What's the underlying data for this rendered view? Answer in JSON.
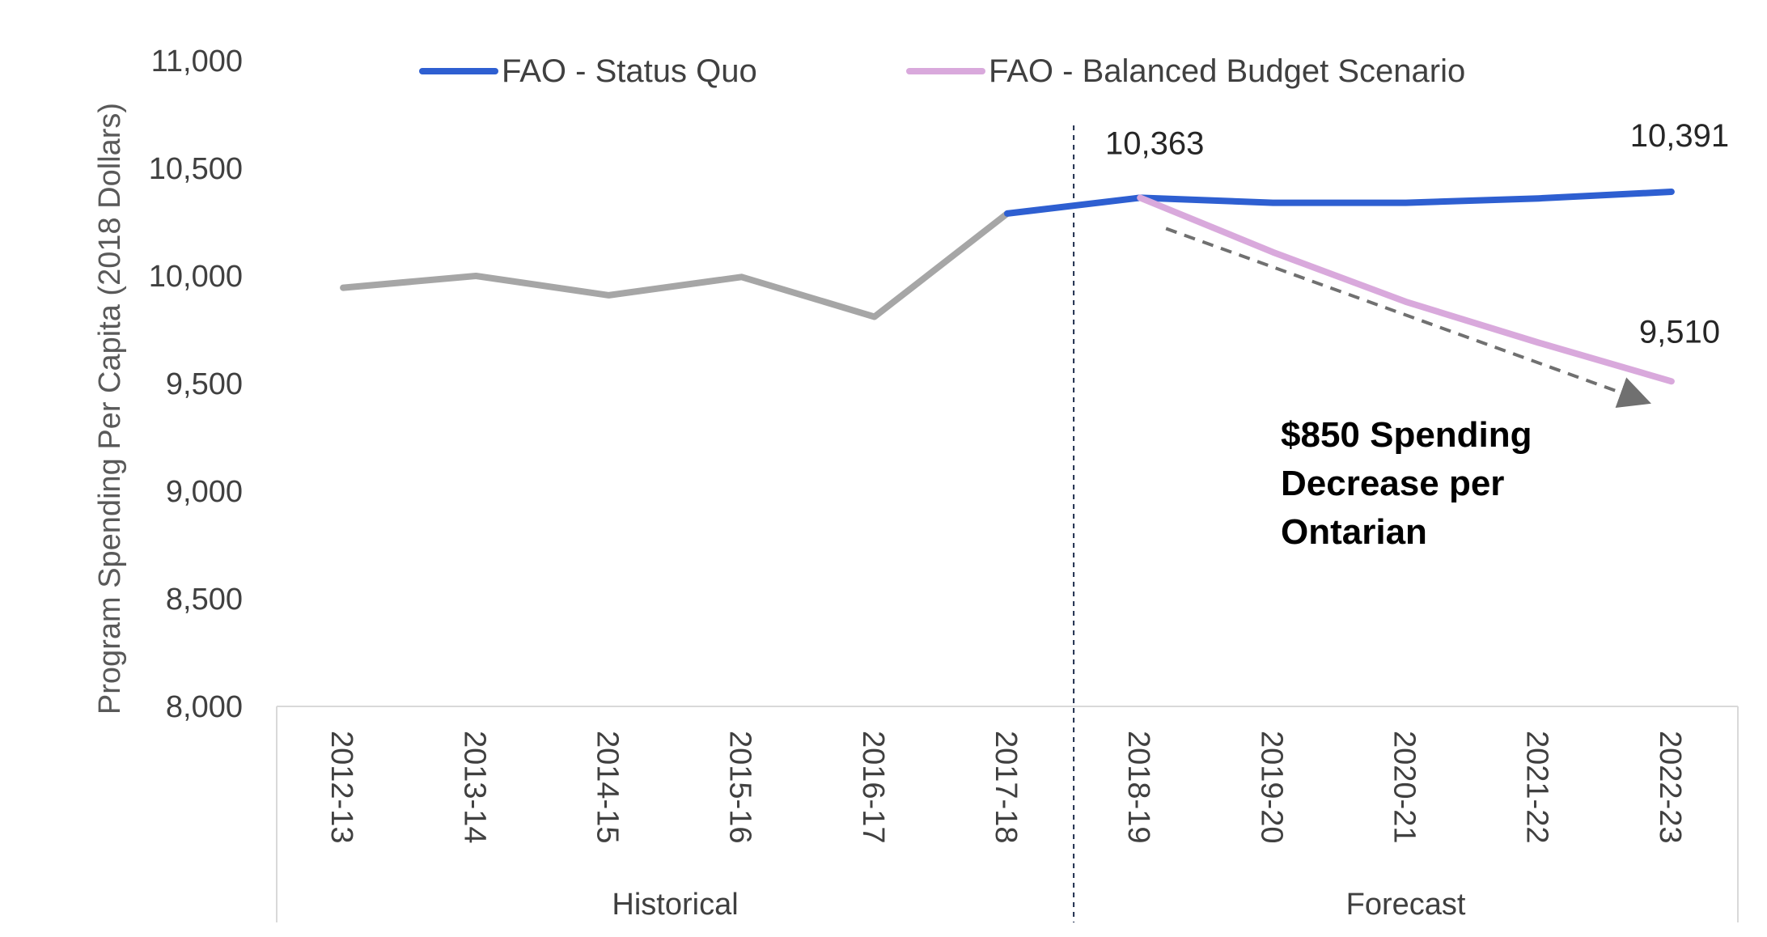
{
  "chart_data": {
    "type": "line",
    "ylabel": "Program Spending Per Capita (2018 Dollars)",
    "ylim": [
      8000,
      11000
    ],
    "yticks": [
      "8,000",
      "8,500",
      "9,000",
      "9,500",
      "10,000",
      "10,500",
      "11,000"
    ],
    "ytick_values": [
      8000,
      8500,
      9000,
      9500,
      10000,
      10500,
      11000
    ],
    "categories": [
      "2012-13",
      "2013-14",
      "2014-15",
      "2015-16",
      "2016-17",
      "2017-18",
      "2018-19",
      "2019-20",
      "2020-21",
      "2021-22",
      "2022-23"
    ],
    "groups": [
      {
        "label": "Historical",
        "start": 0,
        "end": 5
      },
      {
        "label": "Forecast",
        "start": 6,
        "end": 10
      }
    ],
    "series": [
      {
        "name": "",
        "color": "#a6a6a6",
        "values": [
          9945,
          10000,
          9910,
          9995,
          9810,
          10290,
          null,
          null,
          null,
          null,
          null
        ]
      },
      {
        "name": "FAO - Status Quo",
        "color": "#2e5fd1",
        "values": [
          null,
          null,
          null,
          null,
          null,
          10290,
          10363,
          10340,
          10340,
          10360,
          10391
        ]
      },
      {
        "name": "FAO - Balanced Budget Scenario",
        "color": "#d9a9dc",
        "values": [
          null,
          null,
          null,
          null,
          null,
          null,
          10363,
          10110,
          9880,
          9690,
          9510
        ]
      }
    ],
    "data_labels": [
      {
        "category": "2018-19",
        "value": 10363,
        "text": "10,363"
      },
      {
        "category": "2022-23",
        "value": 10391,
        "text": "10,391"
      },
      {
        "category": "2022-23",
        "value": 9510,
        "text": "9,510"
      }
    ],
    "annotation": {
      "lines": [
        "$850 Spending",
        "Decrease per",
        "Ontarian"
      ]
    },
    "grid": false,
    "legend": "top"
  }
}
